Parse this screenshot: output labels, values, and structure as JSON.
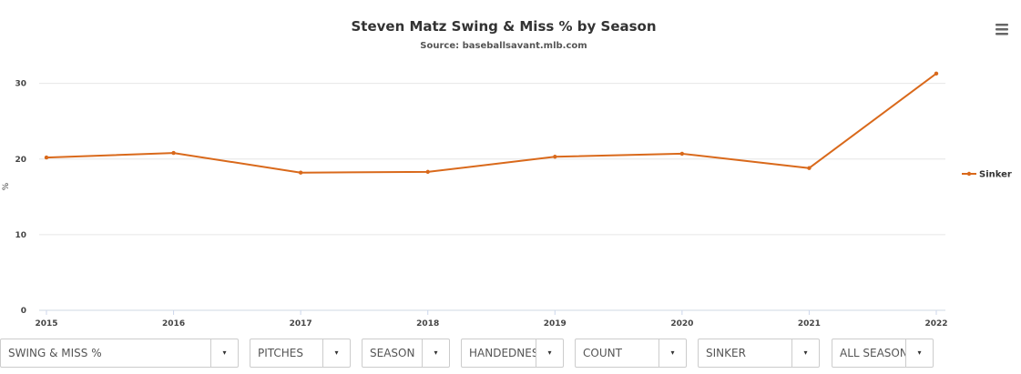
{
  "chart_data": {
    "type": "line",
    "title": "Steven Matz Swing & Miss % by Season",
    "subtitle": "Source: baseballsavant.mlb.com",
    "ylabel": "%",
    "xlabel": "",
    "categories": [
      "2015",
      "2016",
      "2017",
      "2018",
      "2019",
      "2020",
      "2021",
      "2022"
    ],
    "ylim": [
      0,
      32
    ],
    "yticks": [
      0,
      10,
      20,
      30
    ],
    "grid": true,
    "legend_position": "right",
    "series": [
      {
        "name": "Sinker",
        "color": "#d9691b",
        "values": [
          20.2,
          20.8,
          18.2,
          18.3,
          20.3,
          20.7,
          18.8,
          31.3
        ]
      }
    ]
  },
  "controls": [
    {
      "label": "SWING & MISS %"
    },
    {
      "label": "PITCHES"
    },
    {
      "label": "SEASON"
    },
    {
      "label": "HANDEDNESS"
    },
    {
      "label": "COUNT"
    },
    {
      "label": "SINKER"
    },
    {
      "label": "ALL SEASONS"
    }
  ],
  "icons": {
    "menu": "hamburger-menu-icon",
    "dropdown_arrow": "▾"
  }
}
